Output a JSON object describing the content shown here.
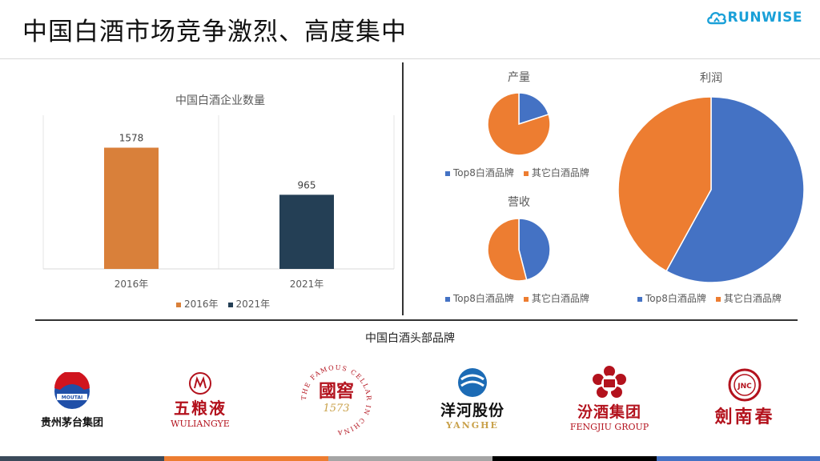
{
  "header": {
    "title": "中国白酒市场竞争激烈、高度集中",
    "brand": "RUNWISE"
  },
  "bar_chart": {
    "title": "中国白酒企业数量",
    "legend": [
      "2016年",
      "2021年"
    ]
  },
  "pies": {
    "production": {
      "title": "产量",
      "legend": [
        "Top8白酒品牌",
        "其它白酒品牌"
      ]
    },
    "revenue": {
      "title": "营收",
      "legend": [
        "Top8白酒品牌",
        "其它白酒品牌"
      ]
    },
    "profit": {
      "title": "利润",
      "legend": [
        "Top8白酒品牌",
        "其它白酒品牌"
      ]
    }
  },
  "logos": {
    "section_title": "中国白酒头部品牌",
    "maotai": {
      "name": "贵州茅台集团",
      "badge": "MOUTAI"
    },
    "wuliangye": {
      "name": "五粮液",
      "sub": "WULIANGYE"
    },
    "guojiao": {
      "name": "國窖",
      "num": "1573",
      "ring": "THE FAMOUS CELLAR IN CHINA"
    },
    "yanghe": {
      "name": "洋河股份",
      "sub": "YANGHE"
    },
    "fenjiu": {
      "name": "汾酒集团",
      "sub": "FENGJIU GROUP"
    },
    "jiannanchun": {
      "name": "劍南春",
      "seal": "JNC"
    }
  },
  "colors": {
    "orange": "#ED7D31",
    "bar2016": "#D9803A",
    "bar2021": "#243F55",
    "blue": "#4472C4",
    "footer": [
      "#3B4A5A",
      "#ED7D31",
      "#A5A5A5",
      "#000000",
      "#4472C4"
    ]
  },
  "chart_data": [
    {
      "type": "bar",
      "title": "中国白酒企业数量",
      "categories": [
        "2016年",
        "2021年"
      ],
      "series": [
        {
          "name": "2016年",
          "values": [
            1578,
            null
          ]
        },
        {
          "name": "2021年",
          "values": [
            null,
            965
          ]
        }
      ],
      "data_labels": [
        "1578",
        "965"
      ],
      "ylim": [
        0,
        2000
      ],
      "grid": true,
      "legend": "bottom"
    },
    {
      "type": "pie",
      "title": "产量",
      "labels": [
        "Top8白酒品牌",
        "其它白酒品牌"
      ],
      "values": [
        20,
        80
      ],
      "legend": "bottom"
    },
    {
      "type": "pie",
      "title": "营收",
      "labels": [
        "Top8白酒品牌",
        "其它白酒品牌"
      ],
      "values": [
        46,
        54
      ],
      "legend": "bottom"
    },
    {
      "type": "pie",
      "title": "利润",
      "labels": [
        "Top8白酒品牌",
        "其它白酒品牌"
      ],
      "values": [
        58,
        42
      ],
      "legend": "bottom"
    }
  ]
}
